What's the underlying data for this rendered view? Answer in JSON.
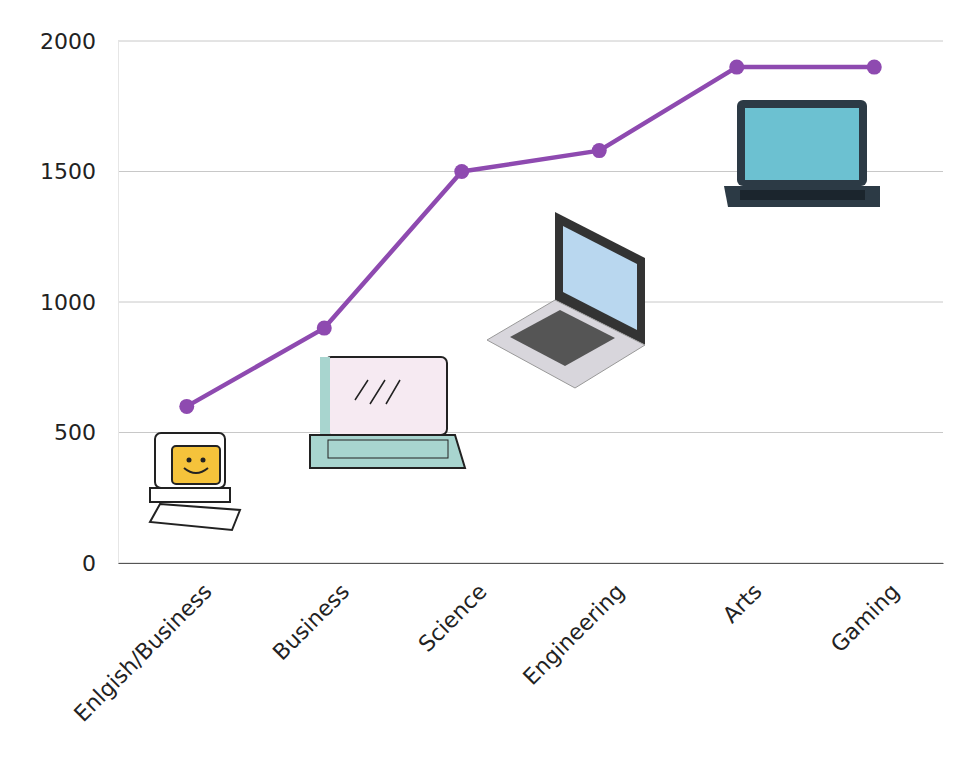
{
  "chart_data": {
    "type": "line",
    "categories": [
      "Enlgish/Business",
      "Business",
      "Science",
      "Engineering",
      "Arts",
      "Gaming"
    ],
    "values": [
      600,
      900,
      1500,
      1580,
      1900,
      1900
    ],
    "color": "#8e4ab0",
    "marker": "circle",
    "ylim": [
      0,
      2000
    ],
    "yticks": [
      0,
      500,
      1000,
      1500,
      2000
    ],
    "grid": true
  }
}
